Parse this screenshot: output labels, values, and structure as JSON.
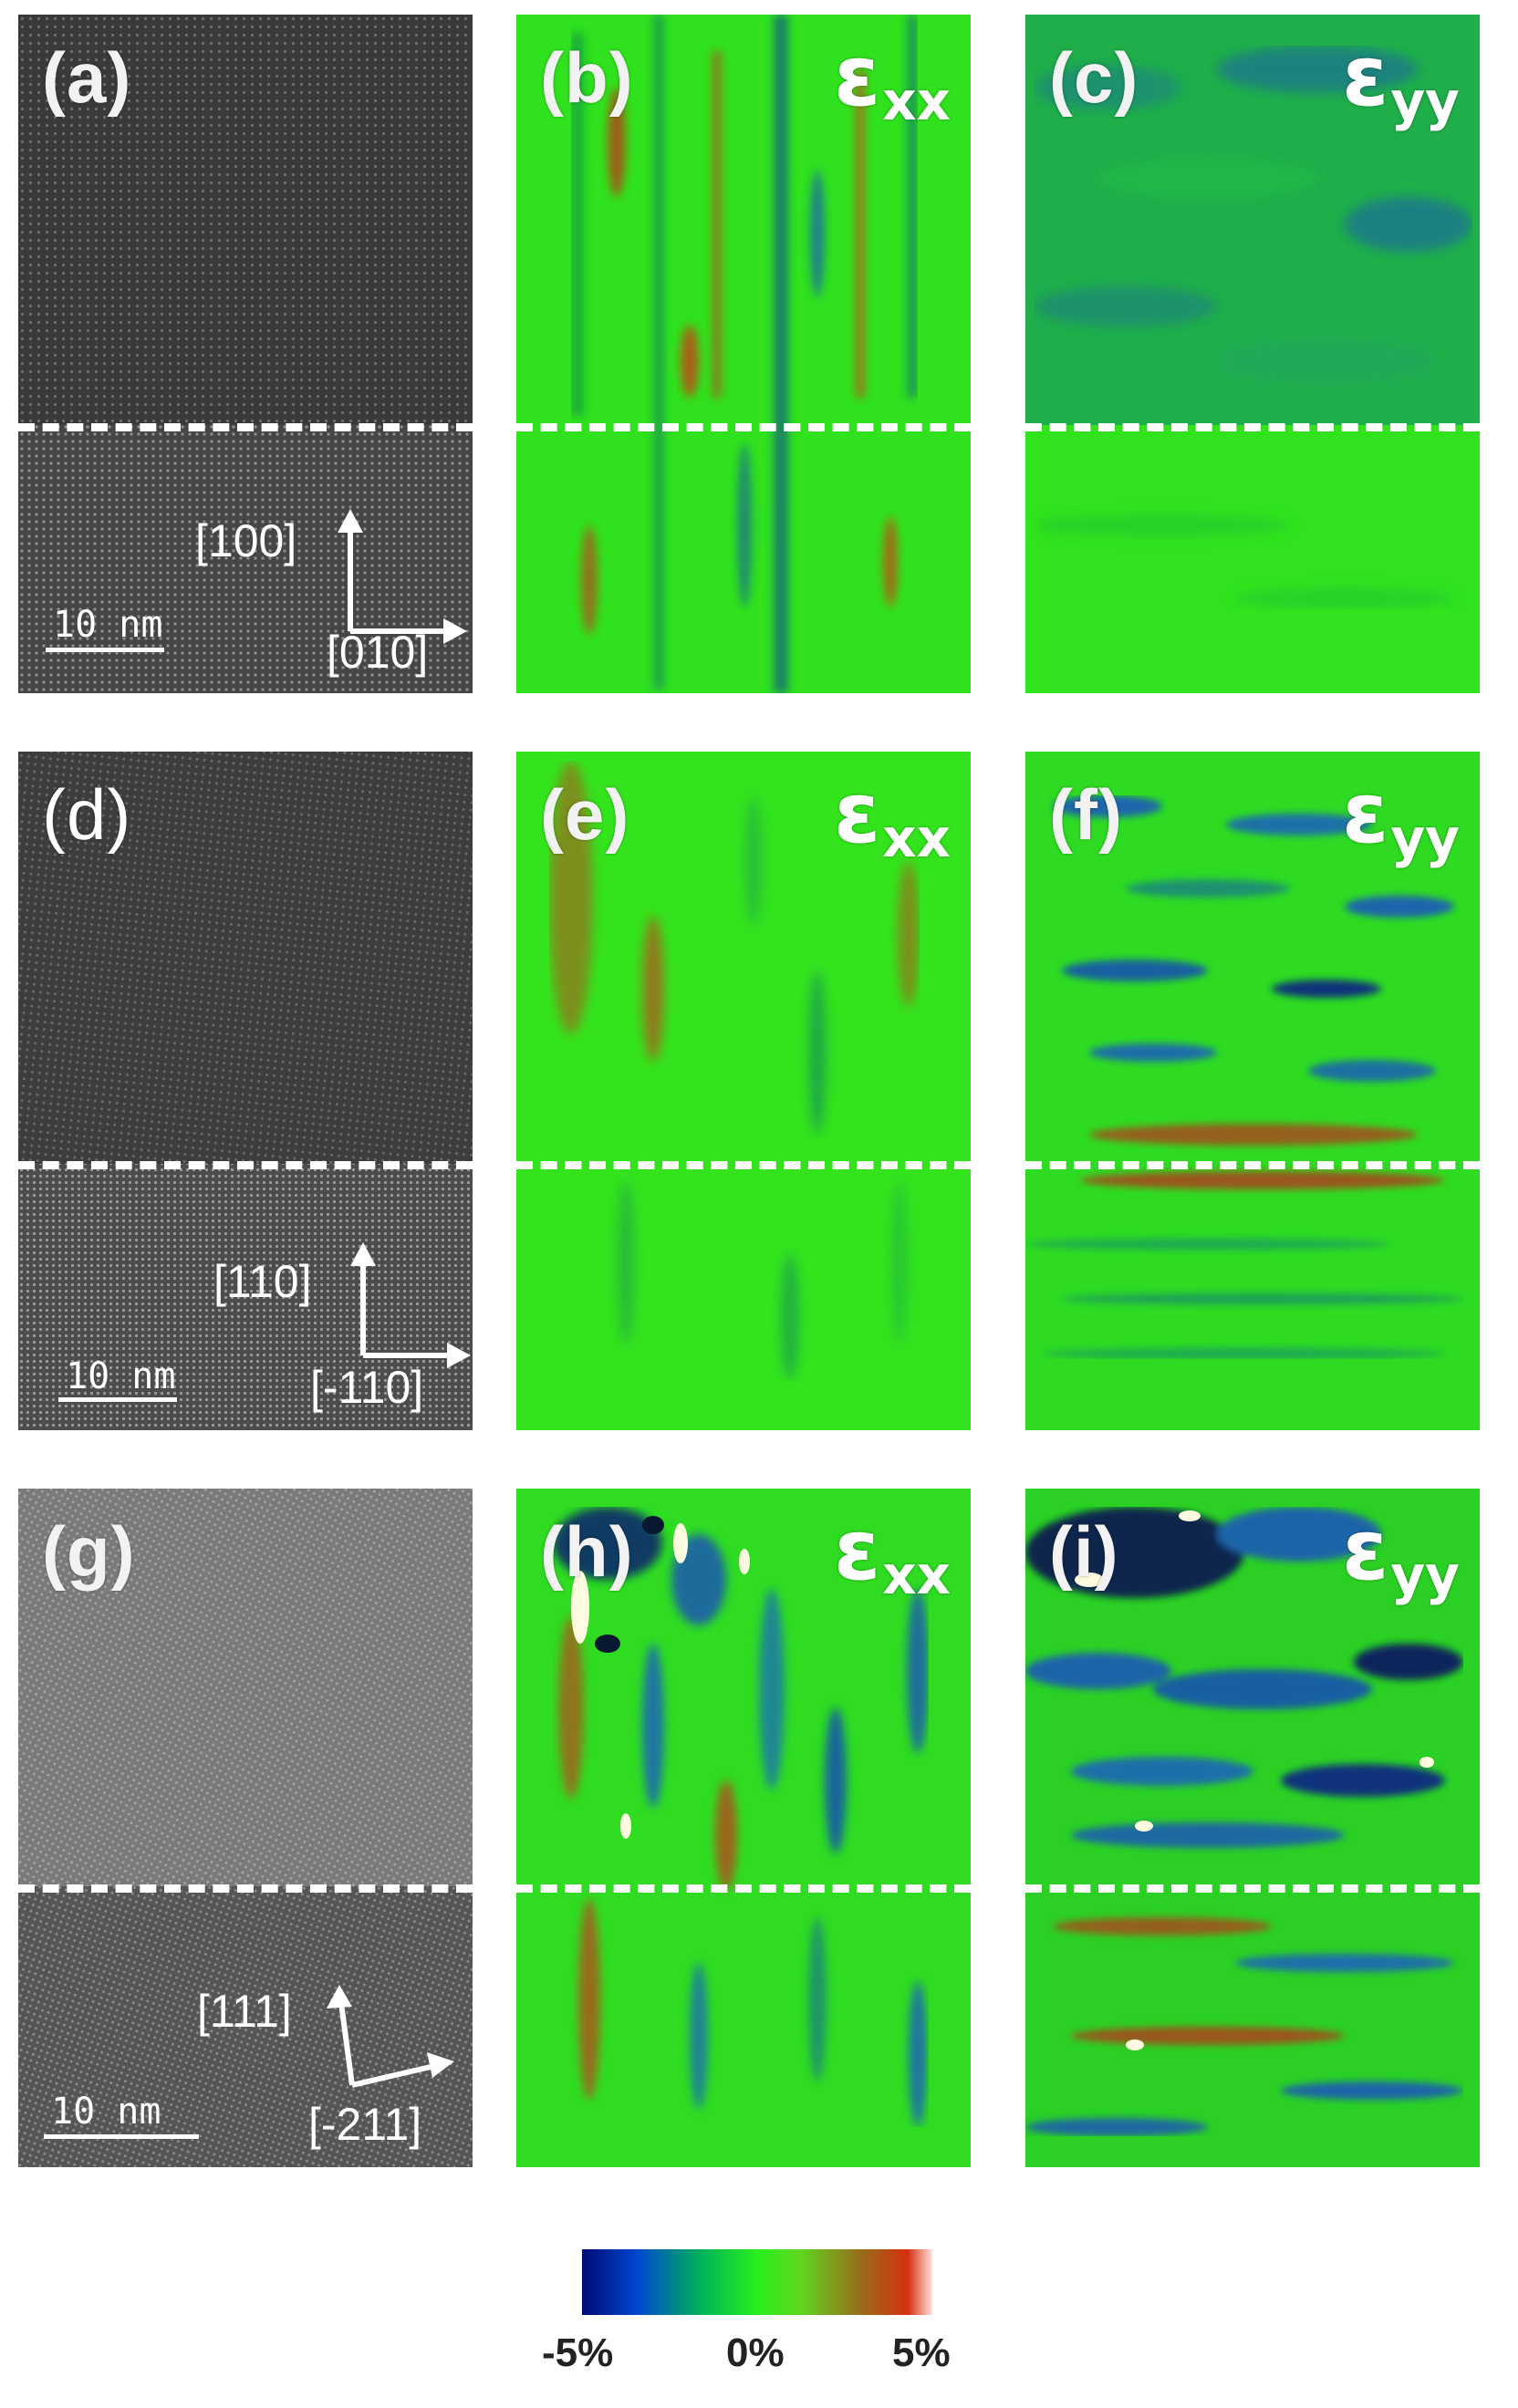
{
  "figure": {
    "panels": [
      {
        "id": "a",
        "label": "(a)",
        "kind": "hrtem",
        "directions": [
          "[100]",
          "[010]"
        ],
        "scale": "10 nm"
      },
      {
        "id": "b",
        "label": "(b)",
        "kind": "strain",
        "component": "xx"
      },
      {
        "id": "c",
        "label": "(c)",
        "kind": "strain",
        "component": "yy"
      },
      {
        "id": "d",
        "label": "(d)",
        "kind": "hrtem",
        "directions": [
          "[110]",
          "[-110]"
        ],
        "scale": "10 nm"
      },
      {
        "id": "e",
        "label": "(e)",
        "kind": "strain",
        "component": "xx"
      },
      {
        "id": "f",
        "label": "(f)",
        "kind": "strain",
        "component": "yy"
      },
      {
        "id": "g",
        "label": "(g)",
        "kind": "hrtem",
        "directions": [
          "[111]",
          "[-211]"
        ],
        "scale": "10 nm"
      },
      {
        "id": "h",
        "label": "(h)",
        "kind": "strain",
        "component": "xx"
      },
      {
        "id": "i",
        "label": "(i)",
        "kind": "strain",
        "component": "yy"
      }
    ],
    "strain_symbol": "ε",
    "colorbar": {
      "min_label": "-5%",
      "mid_label": "0%",
      "max_label": "5%",
      "colors": [
        "#000a78",
        "#0047cf",
        "#00b35a",
        "#27ef1c",
        "#9a6a1a",
        "#d6300f",
        "#ffe0da"
      ]
    }
  }
}
